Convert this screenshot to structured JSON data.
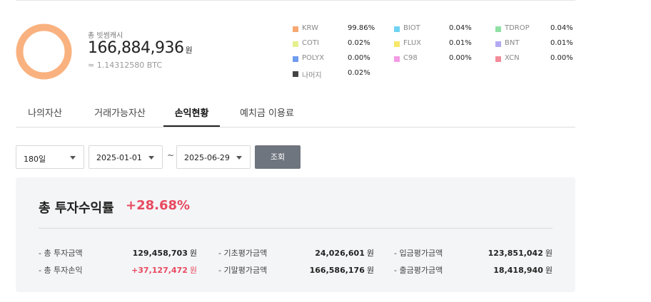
{
  "summary": {
    "total_label": "총 빗썸캐시",
    "total_value": "166,884,936",
    "total_unit": "원",
    "btc_value": "≈ 1.14312580 BTC",
    "donut_color": "#f9b27f"
  },
  "legend": [
    {
      "name": "KRW",
      "pct": "99.86%",
      "color": "#f7a872"
    },
    {
      "name": "BIOT",
      "pct": "0.04%",
      "color": "#6fd3f2"
    },
    {
      "name": "TDROP",
      "pct": "0.04%",
      "color": "#8fe0a5"
    },
    {
      "name": "COTI",
      "pct": "0.02%",
      "color": "#e5ef8e"
    },
    {
      "name": "FLUX",
      "pct": "0.01%",
      "color": "#f6e86a"
    },
    {
      "name": "BNT",
      "pct": "0.01%",
      "color": "#b3a9f2"
    },
    {
      "name": "POLYX",
      "pct": "0.00%",
      "color": "#6f9cf0"
    },
    {
      "name": "C98",
      "pct": "0.00%",
      "color": "#f39be4"
    },
    {
      "name": "XCN",
      "pct": "0.00%",
      "color": "#f28c9a"
    },
    {
      "name": "나머지",
      "pct": "0.02%",
      "color": "#444444"
    }
  ],
  "tabs": [
    {
      "label": "나의자산"
    },
    {
      "label": "거래가능자산"
    },
    {
      "label": "손익현황"
    },
    {
      "label": "예치금 이용료"
    }
  ],
  "filters": {
    "period": "180일",
    "start_date": "2025-01-01",
    "separator": "~",
    "end_date": "2025-06-29",
    "search_label": "조회"
  },
  "result": {
    "rate_label": "총 투자수익률",
    "rate_value": "+28.68%",
    "unit": "원",
    "rows": [
      {
        "label": "- 총 투자금액",
        "value": "129,458,703",
        "red": false
      },
      {
        "label": "- 기초평가금액",
        "value": "24,026,601",
        "red": false
      },
      {
        "label": "- 입금평가금액",
        "value": "123,851,042",
        "red": false
      },
      {
        "label": "- 총 투자손익",
        "value": "+37,127,472",
        "red": true
      },
      {
        "label": "- 기말평가금액",
        "value": "166,586,176",
        "red": false
      },
      {
        "label": "- 출금평가금액",
        "value": "18,418,940",
        "red": false
      }
    ]
  }
}
